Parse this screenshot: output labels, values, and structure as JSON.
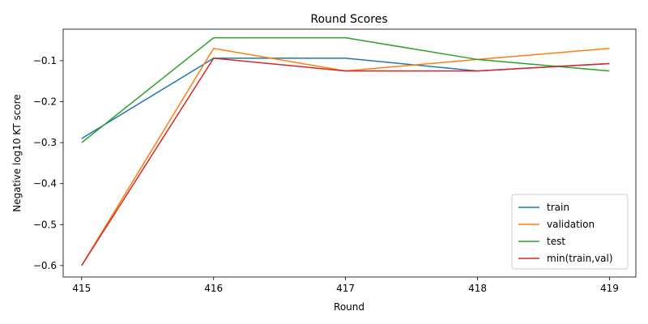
{
  "chart_data": {
    "type": "line",
    "title": "Round Scores",
    "xlabel": "Round",
    "ylabel": "Negative log10 KT score",
    "x": [
      415,
      416,
      417,
      418,
      419
    ],
    "xlim": [
      414.86,
      419.2
    ],
    "ylim": [
      -0.628,
      -0.023
    ],
    "yticks": [
      -0.6,
      -0.5,
      -0.4,
      -0.3,
      -0.2,
      -0.1
    ],
    "ytick_labels": [
      "−0.6",
      "−0.5",
      "−0.4",
      "−0.3",
      "−0.2",
      "−0.1"
    ],
    "xticks": [
      415,
      416,
      417,
      418,
      419
    ],
    "xtick_labels": [
      "415",
      "416",
      "417",
      "418",
      "419"
    ],
    "grid": false,
    "legend_position": "lower-right",
    "series": [
      {
        "name": "train",
        "color": "#1f77b4",
        "values": [
          -0.29,
          -0.094,
          -0.094,
          -0.125,
          -0.107
        ]
      },
      {
        "name": "validation",
        "color": "#ff7f0e",
        "values": [
          -0.6,
          -0.07,
          -0.125,
          -0.097,
          -0.07
        ]
      },
      {
        "name": "test",
        "color": "#2ca02c",
        "values": [
          -0.3,
          -0.044,
          -0.044,
          -0.097,
          -0.125
        ]
      },
      {
        "name": "min(train,val)",
        "color": "#d62728",
        "values": [
          -0.6,
          -0.094,
          -0.125,
          -0.125,
          -0.107
        ]
      }
    ]
  }
}
